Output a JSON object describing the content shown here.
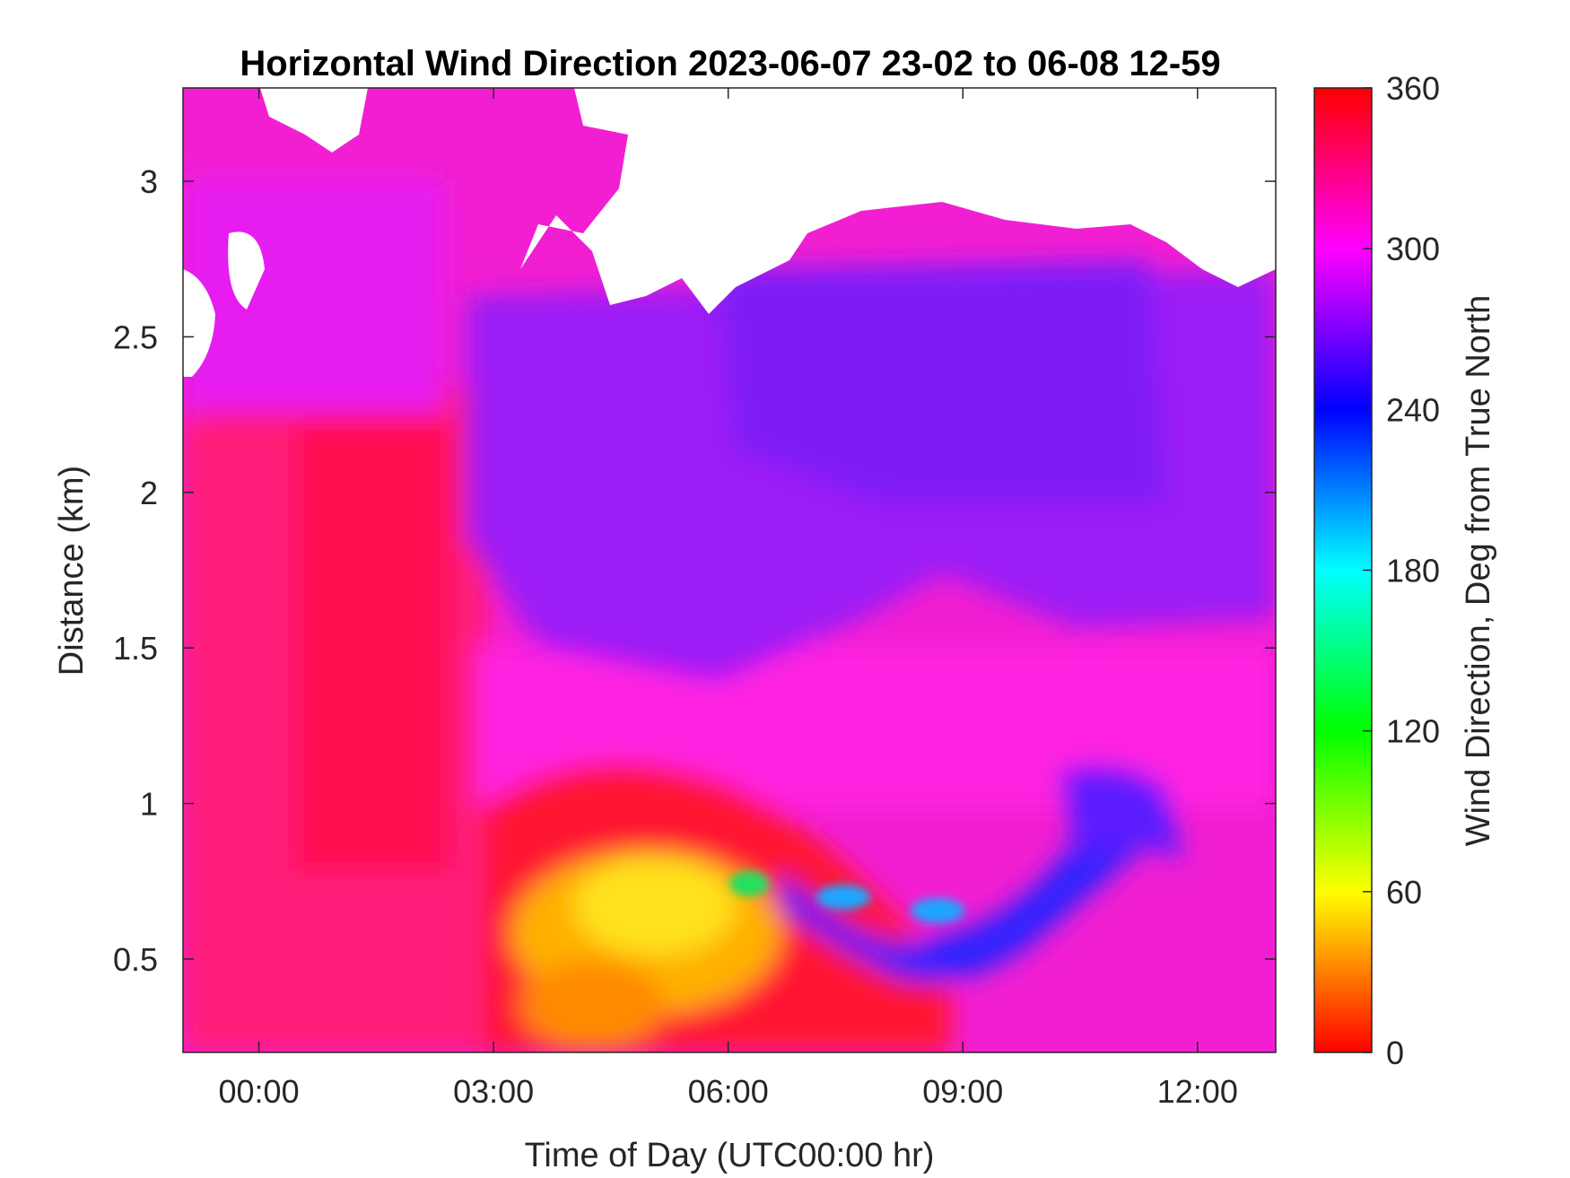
{
  "chart_data": {
    "type": "heatmap",
    "title": "Horizontal Wind Direction 2023-06-07 23-02 to 06-08 12-59",
    "xlabel": "Time of Day (UTC00:00 hr)",
    "ylabel": "Distance (km)",
    "colorbar_label": "Wind Direction, Deg from True North",
    "x_range_hours": [
      -0.97,
      13.0
    ],
    "y_range_km": [
      0.2,
      3.3
    ],
    "x_ticks": [
      {
        "value": 0,
        "label": "00:00"
      },
      {
        "value": 3,
        "label": "03:00"
      },
      {
        "value": 6,
        "label": "06:00"
      },
      {
        "value": 9,
        "label": "09:00"
      },
      {
        "value": 12,
        "label": "12:00"
      }
    ],
    "y_ticks": [
      {
        "value": 0.5,
        "label": "0.5"
      },
      {
        "value": 1,
        "label": "1"
      },
      {
        "value": 1.5,
        "label": "1.5"
      },
      {
        "value": 2,
        "label": "2"
      },
      {
        "value": 2.5,
        "label": "2.5"
      },
      {
        "value": 3,
        "label": "3"
      }
    ],
    "colorbar": {
      "range": [
        0,
        360
      ],
      "ticks": [
        {
          "value": 0,
          "label": "0"
        },
        {
          "value": 60,
          "label": "60"
        },
        {
          "value": 120,
          "label": "120"
        },
        {
          "value": 180,
          "label": "180"
        },
        {
          "value": 240,
          "label": "240"
        },
        {
          "value": 300,
          "label": "300"
        },
        {
          "value": 360,
          "label": "360"
        }
      ],
      "colormap": "hsv-like: 0 red, 60 yellow, 120 green, 180 cyan, 240 blue, 300 magenta, 360 red"
    },
    "z_units": "degrees",
    "regions": [
      {
        "desc": "near-north wind (red/magenta)",
        "x_hours": [
          -0.97,
          3.0
        ],
        "y_km": [
          0.2,
          2.3
        ],
        "value_deg": 340
      },
      {
        "desc": "magenta band",
        "x_hours": [
          -0.97,
          2.0
        ],
        "y_km": [
          2.3,
          3.3
        ],
        "value_deg": 305
      },
      {
        "desc": "purple upper layer",
        "x_hours": [
          3.0,
          13.0
        ],
        "y_km": [
          1.1,
          2.9
        ],
        "value_deg": 280
      },
      {
        "desc": "yellow-orange low level",
        "x_hours": [
          3.5,
          7.0
        ],
        "y_km": [
          0.2,
          0.9
        ],
        "value_deg": 40
      },
      {
        "desc": "blue layer",
        "x_hours": [
          7.0,
          11.5
        ],
        "y_km": [
          0.45,
          0.95
        ],
        "value_deg": 245
      },
      {
        "desc": "no data (white)",
        "x_hours": [
          3.0,
          13.0
        ],
        "y_km": [
          2.6,
          3.3
        ],
        "value_deg": null
      }
    ]
  }
}
